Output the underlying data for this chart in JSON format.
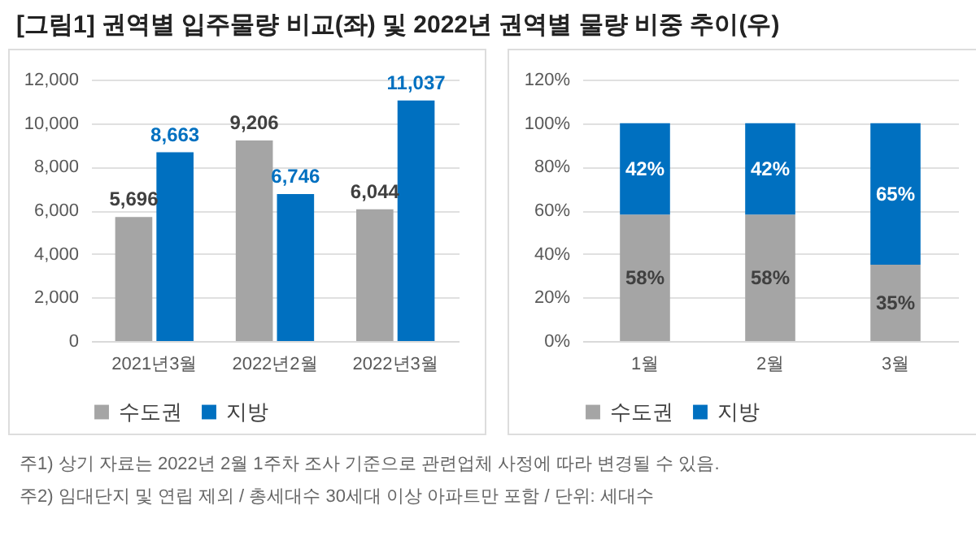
{
  "chart_data": [
    {
      "type": "bar",
      "title": "[그림1] 권역별 입주물량 비교(좌) 및 2022년 권역별 물량 비중 추이(우)",
      "categories": [
        "2021년3월",
        "2022년2월",
        "2022년3월"
      ],
      "series": [
        {
          "name": "수도권",
          "color": "#a5a5a5",
          "values": [
            5696,
            9206,
            6044
          ],
          "value_labels": [
            "5,696",
            "9,206",
            "6,044"
          ]
        },
        {
          "name": "지방",
          "color": "#0070c0",
          "values": [
            8663,
            6746,
            11037
          ],
          "value_labels": [
            "8,663",
            "6,746",
            "11,037"
          ]
        }
      ],
      "ylim": [
        0,
        12000
      ],
      "yticks": [
        {
          "value": 0,
          "label": "0"
        },
        {
          "value": 2000,
          "label": "2,000"
        },
        {
          "value": 4000,
          "label": "4,000"
        },
        {
          "value": 6000,
          "label": "6,000"
        },
        {
          "value": 8000,
          "label": "8,000"
        },
        {
          "value": 10000,
          "label": "10,000"
        },
        {
          "value": 12000,
          "label": "12,000"
        }
      ],
      "grid": "y",
      "legend": "bottom",
      "annotations": [
        "주1) 상기 자료는 2022년 2월 1주차 조사 기준으로 관련업체 사정에 따라 변경될 수 있음.",
        "주2) 임대단지 및 연립 제외 / 총세대수 30세대 이상 아파트만 포함 / 단위: 세대수"
      ]
    },
    {
      "type": "bar",
      "stacked": true,
      "categories": [
        "1월",
        "2월",
        "3월"
      ],
      "series": [
        {
          "name": "수도권",
          "color": "#a5a5a5",
          "values": [
            58,
            58,
            35
          ],
          "value_labels": [
            "58%",
            "58%",
            "35%"
          ]
        },
        {
          "name": "지방",
          "color": "#0070c0",
          "values": [
            42,
            42,
            65
          ],
          "value_labels": [
            "42%",
            "42%",
            "65%"
          ]
        }
      ],
      "ylim": [
        0,
        120
      ],
      "yticks": [
        {
          "value": 0,
          "label": "0%"
        },
        {
          "value": 20,
          "label": "20%"
        },
        {
          "value": 40,
          "label": "40%"
        },
        {
          "value": 60,
          "label": "60%"
        },
        {
          "value": 80,
          "label": "80%"
        },
        {
          "value": 100,
          "label": "100%"
        },
        {
          "value": 120,
          "label": "120%"
        }
      ],
      "grid": "y",
      "legend": "bottom"
    }
  ]
}
